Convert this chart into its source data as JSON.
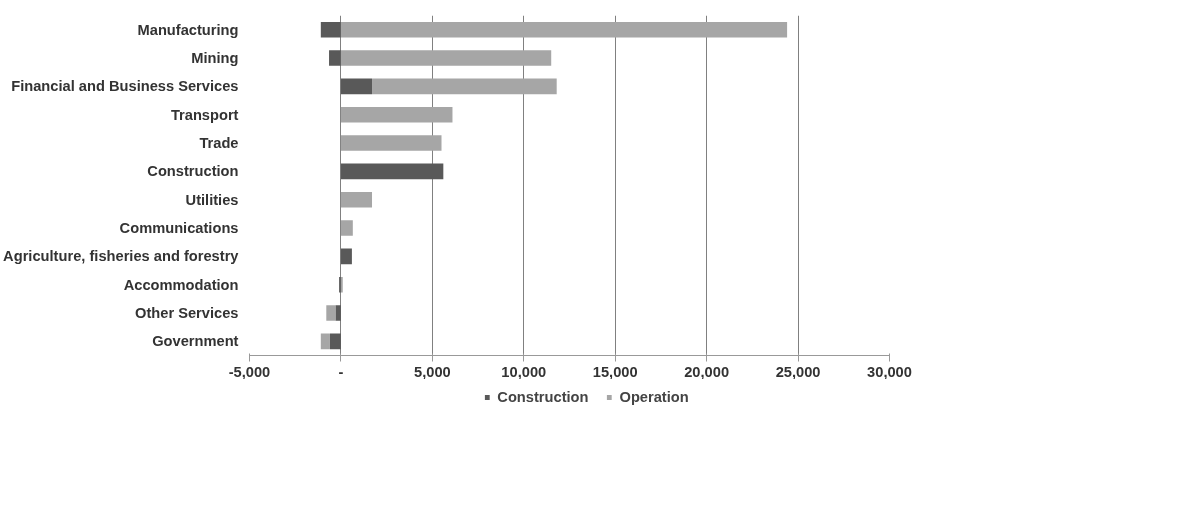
{
  "chart_data": {
    "type": "bar",
    "orientation": "horizontal",
    "stacked": true,
    "categories": [
      "Manufacturing",
      "Mining",
      "Financial and Business Services",
      "Transport",
      "Trade",
      "Construction",
      "Utilities",
      "Communications",
      "Agriculture, fisheries and forestry",
      "Accommodation",
      "Other Services",
      "Government"
    ],
    "series": [
      {
        "name": "Construction",
        "color": "#595959",
        "values": [
          -1100,
          -650,
          1700,
          0,
          0,
          5600,
          0,
          0,
          600,
          -100,
          -300,
          -600
        ]
      },
      {
        "name": "Operation",
        "color": "#a6a6a6",
        "values": [
          24400,
          11500,
          10100,
          6100,
          5500,
          0,
          1700,
          650,
          0,
          100,
          -500,
          -500
        ]
      }
    ],
    "xlim": [
      -5000,
      30000
    ],
    "xticks": [
      {
        "value": -5000,
        "label": "-5,000"
      },
      {
        "value": 0,
        "label": "-"
      },
      {
        "value": 5000,
        "label": "5,000"
      },
      {
        "value": 10000,
        "label": "10,000"
      },
      {
        "value": 15000,
        "label": "15,000"
      },
      {
        "value": 20000,
        "label": "20,000"
      },
      {
        "value": 25000,
        "label": "25,000"
      },
      {
        "value": 30000,
        "label": "30,000"
      }
    ],
    "grid": "x",
    "legend": "bottom"
  }
}
